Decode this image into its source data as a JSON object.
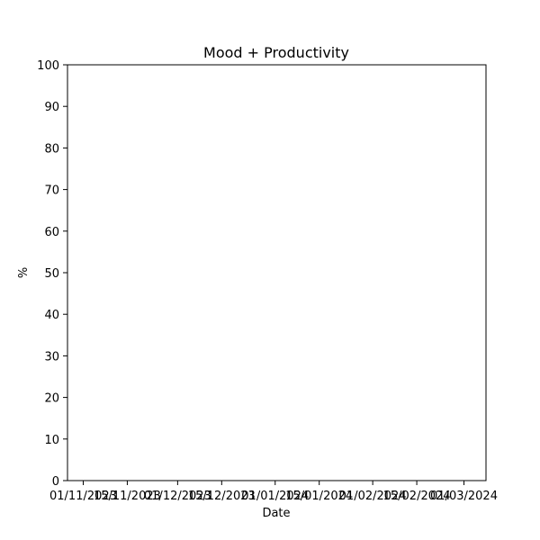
{
  "chart_data": {
    "type": "line",
    "title": "Mood + Productivity",
    "xlabel": "Date",
    "ylabel": "%",
    "ylim": [
      0,
      100
    ],
    "xlim": [
      "2023-10-27",
      "2024-03-08"
    ],
    "y_ticks": [
      0,
      10,
      20,
      30,
      40,
      50,
      60,
      70,
      80,
      90,
      100
    ],
    "x_ticks": [
      {
        "date": "2023-11-01",
        "label": "01/11/2023"
      },
      {
        "date": "2023-11-15",
        "label": "15/11/2023"
      },
      {
        "date": "2023-12-01",
        "label": "01/12/2023"
      },
      {
        "date": "2023-12-15",
        "label": "15/12/2023"
      },
      {
        "date": "2024-01-01",
        "label": "01/01/2024"
      },
      {
        "date": "2024-01-15",
        "label": "15/01/2024"
      },
      {
        "date": "2024-02-01",
        "label": "01/02/2024"
      },
      {
        "date": "2024-02-15",
        "label": "15/02/2024"
      },
      {
        "date": "2024-03-01",
        "label": "01/03/2024"
      }
    ],
    "grid": false,
    "series": []
  }
}
